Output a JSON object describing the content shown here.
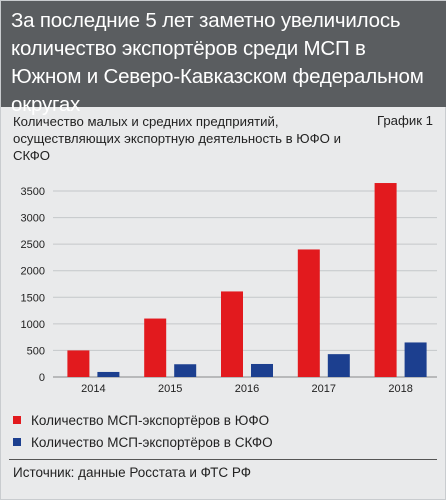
{
  "header": {
    "title": "За последние 5 лет заметно увеличилось количество экспортёров среди МСП в Южном и Северо-Кавказском федеральном округах"
  },
  "chart_label": "График 1",
  "source": "Источник: данные Росстата и ФТС РФ",
  "colors": {
    "red": "#e21a1e",
    "blue": "#1c3f8f",
    "header_bg": "#5a5d60",
    "panel_bg": "#e9eaeb"
  },
  "chart_data": {
    "type": "bar",
    "title": "Количество малых и средних предприятий, осуществляющих экспортную деятельность в ЮФО и СКФО",
    "categories": [
      "2014",
      "2015",
      "2016",
      "2017",
      "2018"
    ],
    "series": [
      {
        "name": "Количество МСП-экспортёров в ЮФО",
        "color": "#e21a1e",
        "values": [
          500,
          1100,
          1610,
          2400,
          3650
        ]
      },
      {
        "name": "Количество МСП-экспортёров в СКФО",
        "color": "#1c3f8f",
        "values": [
          95,
          240,
          245,
          430,
          650
        ]
      }
    ],
    "ylim": [
      0,
      3500
    ],
    "yticks": [
      "0",
      "500",
      "1000",
      "1500",
      "2000",
      "2500",
      "3000",
      "3500"
    ],
    "xlabel": "",
    "ylabel": "",
    "grid": true,
    "legend_position": "bottom"
  }
}
